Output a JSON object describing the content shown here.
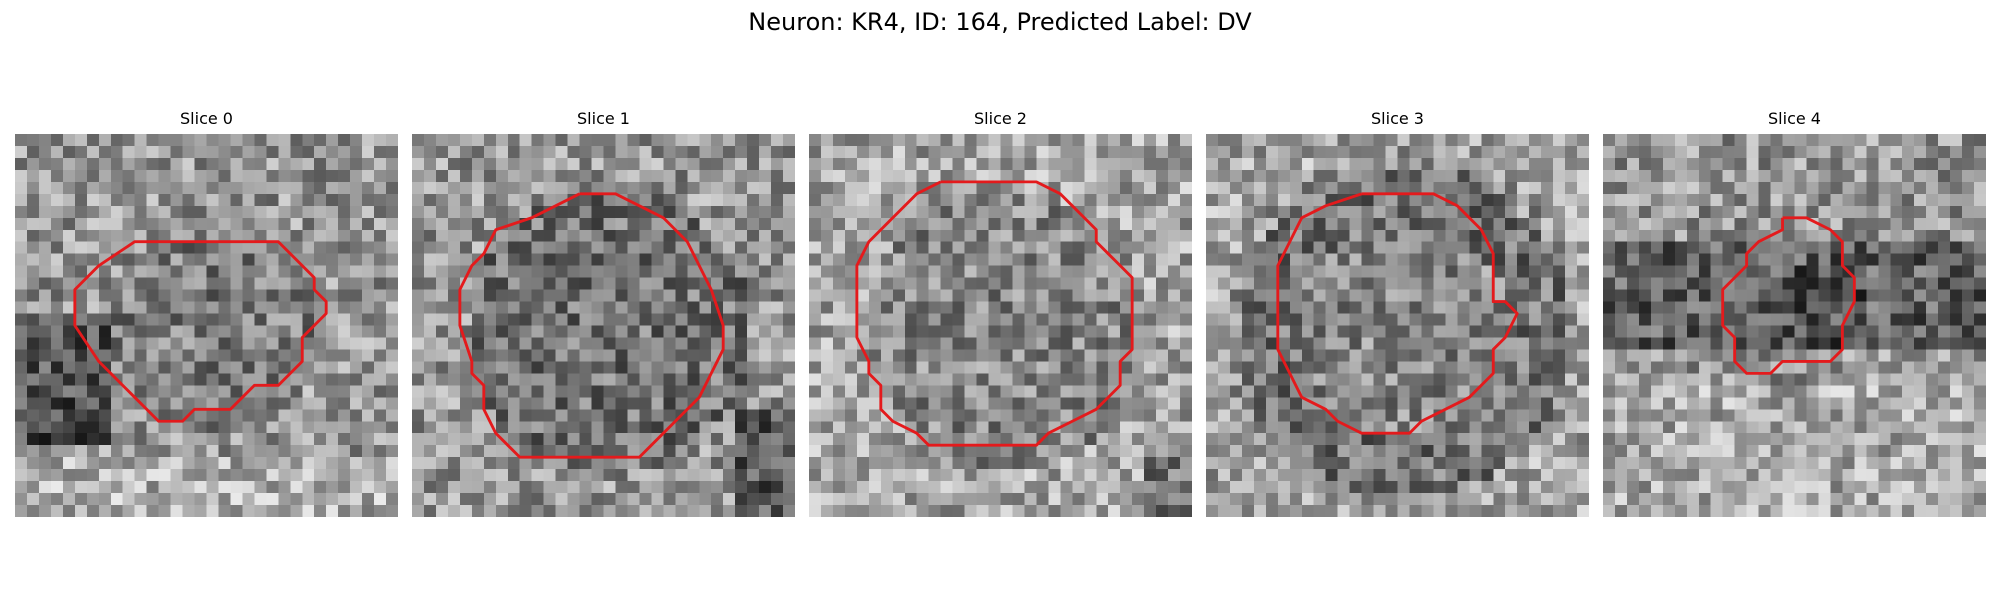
{
  "figure": {
    "title": "Neuron: KR4, ID: 164, Predicted Label: DV"
  },
  "contour_color": "#e41a1c",
  "panels": [
    {
      "title": "Slice 0",
      "seed": 11,
      "background": "#ffffff",
      "texture_gradient": "dark lower-left band",
      "contour": [
        [
          14,
          9
        ],
        [
          22,
          9
        ],
        [
          25,
          12
        ],
        [
          25,
          13
        ],
        [
          26,
          14
        ],
        [
          26,
          15
        ],
        [
          25,
          16
        ],
        [
          24,
          17
        ],
        [
          24,
          19
        ],
        [
          22,
          21
        ],
        [
          20,
          21
        ],
        [
          19,
          22
        ],
        [
          18,
          23
        ],
        [
          15,
          23
        ],
        [
          14,
          24
        ],
        [
          12,
          24
        ],
        [
          11,
          23
        ],
        [
          10,
          22
        ],
        [
          9,
          21
        ],
        [
          7,
          19
        ],
        [
          5,
          16
        ],
        [
          5,
          13
        ],
        [
          7,
          11
        ],
        [
          10,
          9
        ],
        [
          14,
          9
        ]
      ]
    },
    {
      "title": "Slice 1",
      "seed": 23,
      "background": "#ffffff",
      "texture_gradient": "dark lower-right corner",
      "contour": [
        [
          14,
          5
        ],
        [
          17,
          5
        ],
        [
          19,
          6
        ],
        [
          21,
          7
        ],
        [
          23,
          9
        ],
        [
          24,
          11
        ],
        [
          25,
          13
        ],
        [
          26,
          16
        ],
        [
          26,
          18
        ],
        [
          25,
          20
        ],
        [
          24,
          22
        ],
        [
          23,
          23
        ],
        [
          22,
          24
        ],
        [
          20,
          26
        ],
        [
          19,
          27
        ],
        [
          9,
          27
        ],
        [
          8,
          26
        ],
        [
          7,
          25
        ],
        [
          6,
          23
        ],
        [
          6,
          21
        ],
        [
          5,
          20
        ],
        [
          5,
          19
        ],
        [
          4,
          16
        ],
        [
          4,
          13
        ],
        [
          5,
          11
        ],
        [
          6,
          10
        ],
        [
          7,
          8
        ],
        [
          10,
          7
        ],
        [
          12,
          6
        ],
        [
          14,
          5
        ]
      ]
    },
    {
      "title": "Slice 2",
      "seed": 37,
      "background": "#ffffff",
      "texture_gradient": "lighter field, dark lower-right",
      "contour": [
        [
          11,
          4
        ],
        [
          19,
          4
        ],
        [
          21,
          5
        ],
        [
          22,
          6
        ],
        [
          23,
          7
        ],
        [
          24,
          8
        ],
        [
          24,
          9
        ],
        [
          25,
          10
        ],
        [
          26,
          11
        ],
        [
          27,
          12
        ],
        [
          27,
          18
        ],
        [
          26,
          19
        ],
        [
          26,
          21
        ],
        [
          24,
          23
        ],
        [
          22,
          24
        ],
        [
          20,
          25
        ],
        [
          19,
          26
        ],
        [
          10,
          26
        ],
        [
          9,
          25
        ],
        [
          7,
          24
        ],
        [
          6,
          23
        ],
        [
          6,
          21
        ],
        [
          5,
          20
        ],
        [
          5,
          19
        ],
        [
          4,
          17
        ],
        [
          4,
          11
        ],
        [
          5,
          9
        ],
        [
          6,
          8
        ],
        [
          7,
          7
        ],
        [
          9,
          5
        ],
        [
          11,
          4
        ]
      ]
    },
    {
      "title": "Slice 3",
      "seed": 53,
      "background": "#ffffff",
      "texture_gradient": "dark ring around centre",
      "contour": [
        [
          13,
          5
        ],
        [
          19,
          5
        ],
        [
          21,
          6
        ],
        [
          23,
          8
        ],
        [
          24,
          10
        ],
        [
          24,
          14
        ],
        [
          25,
          14
        ],
        [
          26,
          15
        ],
        [
          25,
          17
        ],
        [
          24,
          18
        ],
        [
          24,
          20
        ],
        [
          22,
          22
        ],
        [
          20,
          23
        ],
        [
          18,
          24
        ],
        [
          17,
          25
        ],
        [
          13,
          25
        ],
        [
          11,
          24
        ],
        [
          10,
          23
        ],
        [
          8,
          22
        ],
        [
          7,
          20
        ],
        [
          6,
          18
        ],
        [
          6,
          11
        ],
        [
          7,
          9
        ],
        [
          8,
          7
        ],
        [
          10,
          6
        ],
        [
          13,
          5
        ]
      ]
    },
    {
      "title": "Slice 4",
      "seed": 71,
      "background": "#ffffff",
      "texture_gradient": "horizontal dark band",
      "contour": [
        [
          15,
          7
        ],
        [
          17,
          7
        ],
        [
          19,
          8
        ],
        [
          20,
          9
        ],
        [
          20,
          11
        ],
        [
          21,
          12
        ],
        [
          21,
          14
        ],
        [
          20,
          16
        ],
        [
          20,
          18
        ],
        [
          19,
          19
        ],
        [
          15,
          19
        ],
        [
          14,
          20
        ],
        [
          12,
          20
        ],
        [
          11,
          19
        ],
        [
          11,
          17
        ],
        [
          10,
          16
        ],
        [
          10,
          13
        ],
        [
          11,
          12
        ],
        [
          12,
          11
        ],
        [
          12,
          10
        ],
        [
          13,
          9
        ],
        [
          15,
          8
        ],
        [
          15,
          7
        ]
      ]
    }
  ]
}
